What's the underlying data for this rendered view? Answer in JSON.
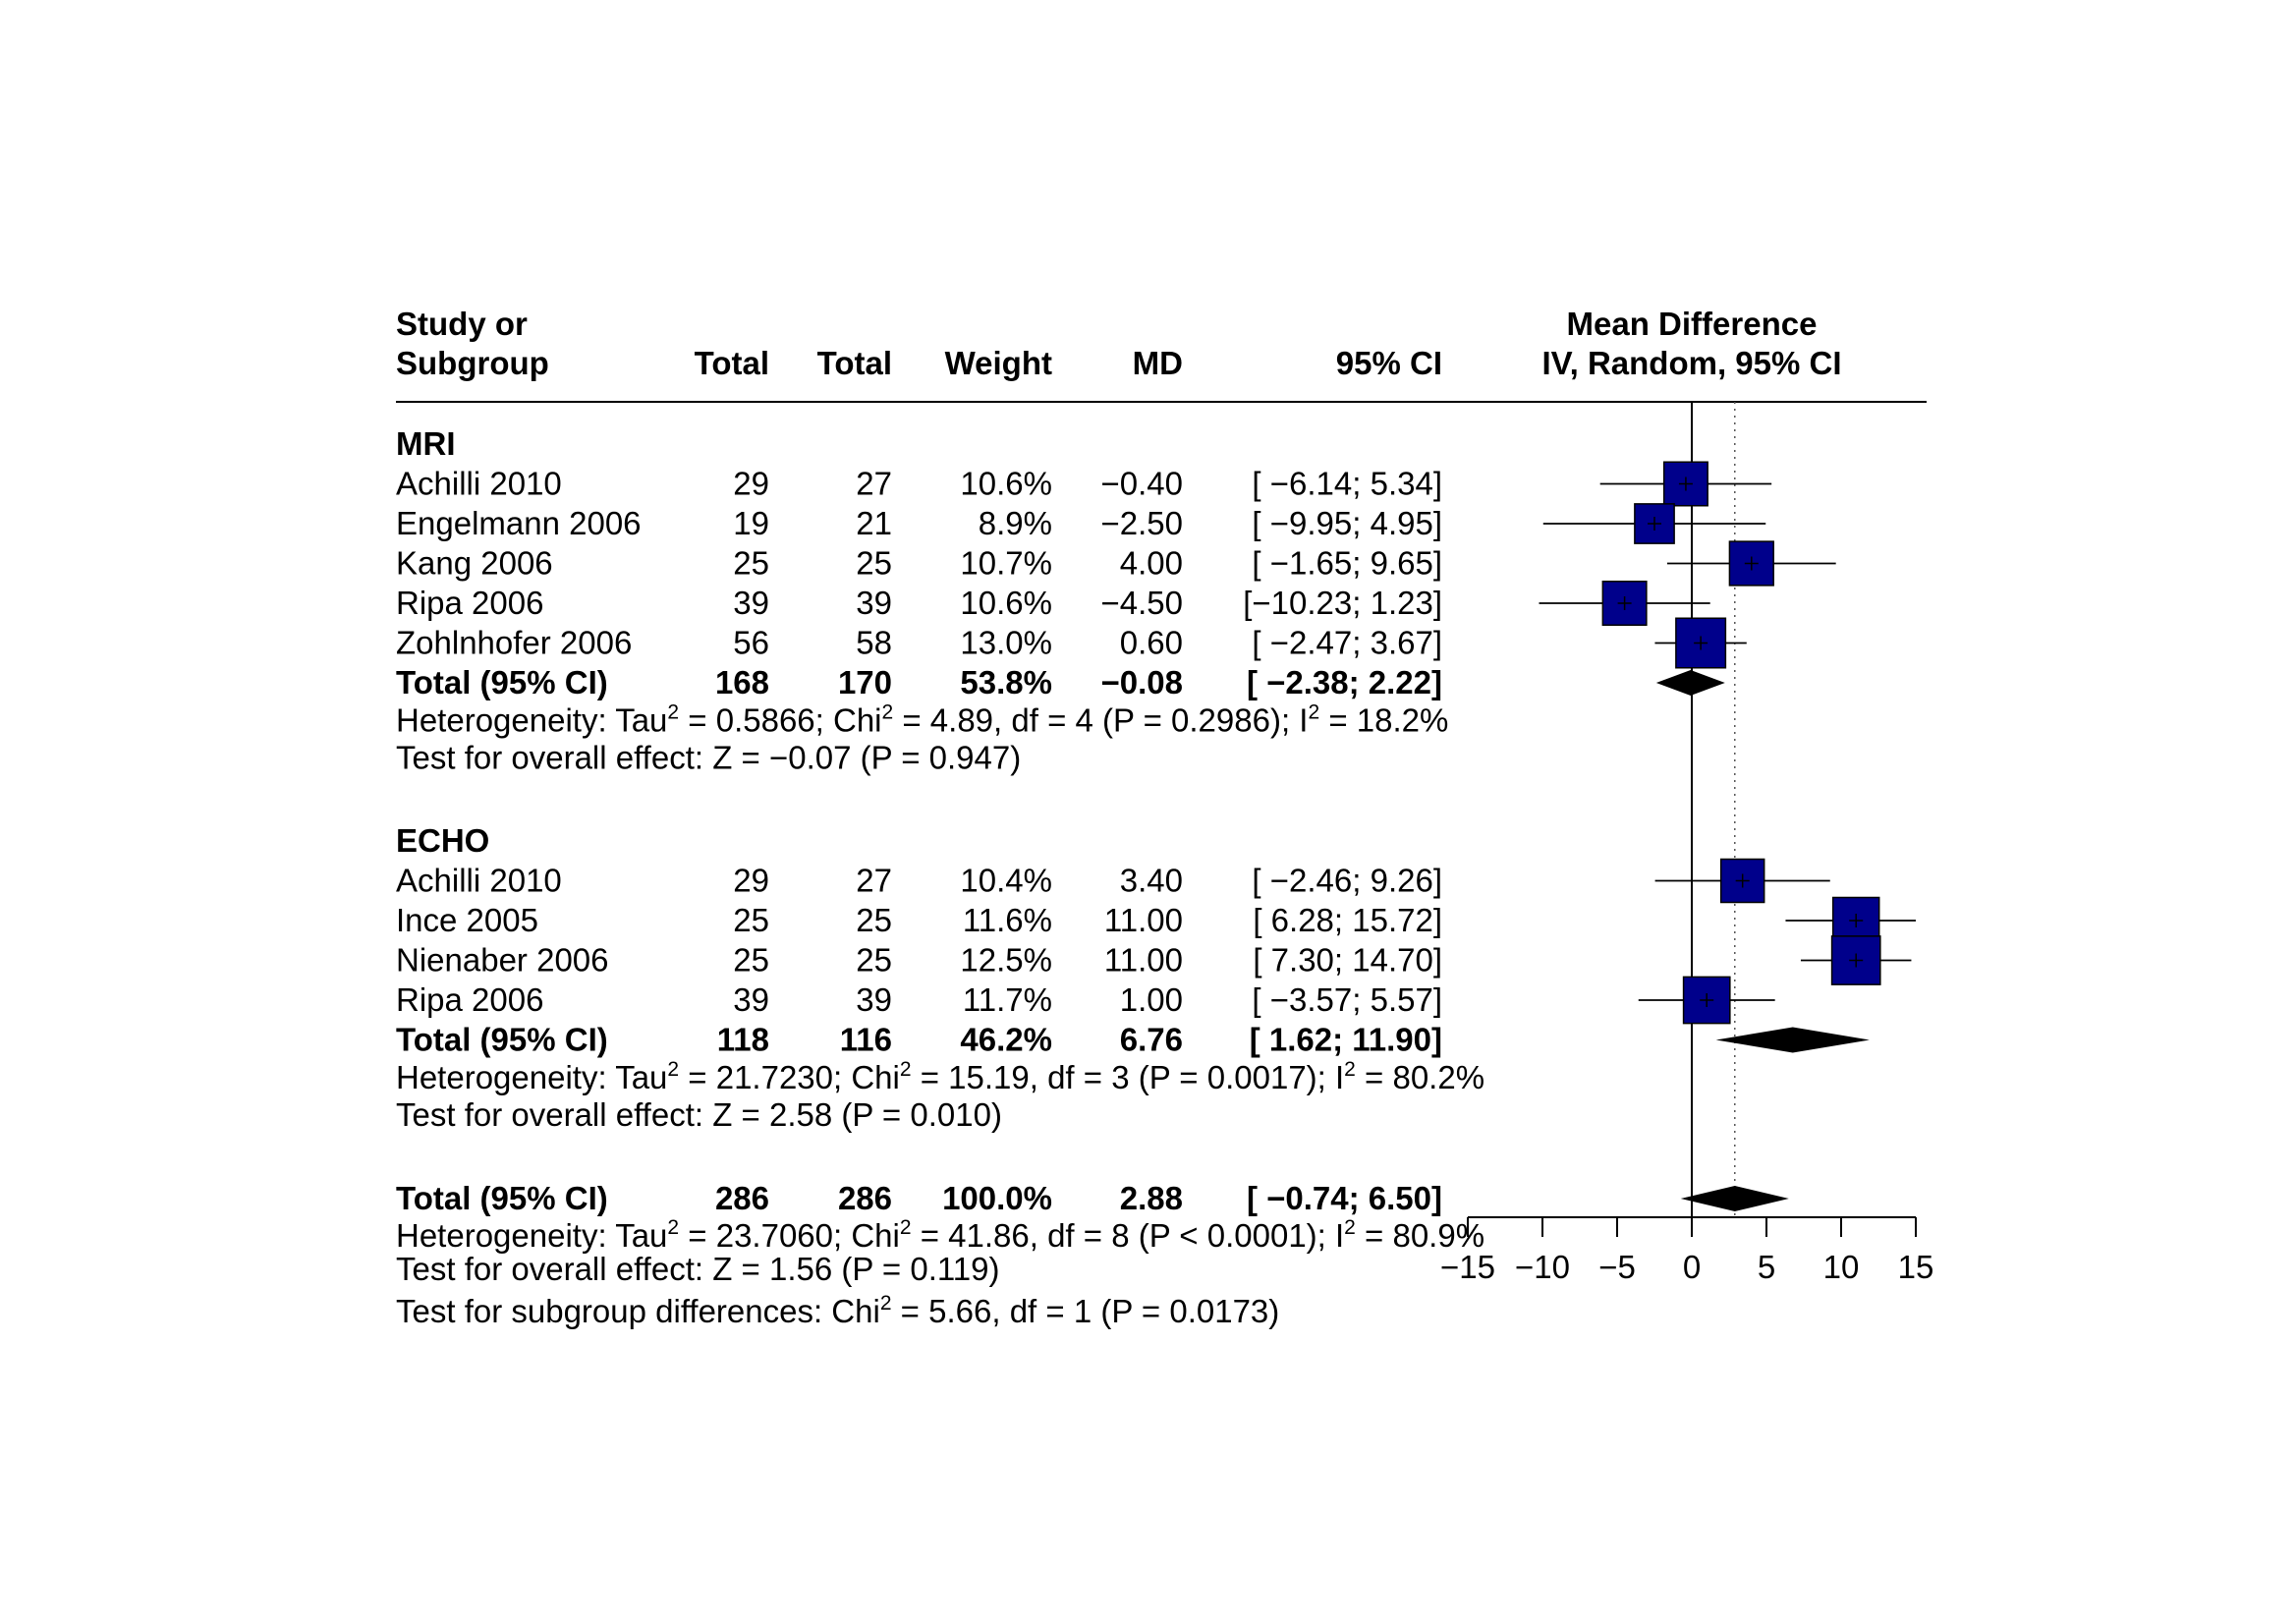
{
  "chart_data": {
    "type": "forest",
    "headers": {
      "study_line1": "Study or",
      "study_line2": "Subgroup",
      "total_exp": "Total",
      "total_ctrl": "Total",
      "weight": "Weight",
      "md": "MD",
      "ci": "95% CI",
      "plot_line1": "Mean Difference",
      "plot_line2": "IV, Random, 95% CI"
    },
    "subgroups": [
      {
        "name": "MRI",
        "studies": [
          {
            "study": "Achilli 2010",
            "n_exp": "29",
            "n_ctrl": "27",
            "weight_label": "10.6%",
            "md_label": "−0.40",
            "ci_label": "[ −6.14;  5.34]",
            "md": -0.4,
            "lower": -6.14,
            "upper": 5.34,
            "weight": 10.6
          },
          {
            "study": "Engelmann 2006",
            "n_exp": "19",
            "n_ctrl": "21",
            "weight_label": "8.9%",
            "md_label": "−2.50",
            "ci_label": "[ −9.95;  4.95]",
            "md": -2.5,
            "lower": -9.95,
            "upper": 4.95,
            "weight": 8.9
          },
          {
            "study": "Kang 2006",
            "n_exp": "25",
            "n_ctrl": "25",
            "weight_label": "10.7%",
            "md_label": "4.00",
            "ci_label": "[ −1.65;  9.65]",
            "md": 4.0,
            "lower": -1.65,
            "upper": 9.65,
            "weight": 10.7
          },
          {
            "study": "Ripa 2006",
            "n_exp": "39",
            "n_ctrl": "39",
            "weight_label": "10.6%",
            "md_label": "−4.50",
            "ci_label": "[−10.23;  1.23]",
            "md": -4.5,
            "lower": -10.23,
            "upper": 1.23,
            "weight": 10.6
          },
          {
            "study": "Zohlnhofer 2006",
            "n_exp": "56",
            "n_ctrl": "58",
            "weight_label": "13.0%",
            "md_label": "0.60",
            "ci_label": "[ −2.47;  3.67]",
            "md": 0.6,
            "lower": -2.47,
            "upper": 3.67,
            "weight": 13.0
          }
        ],
        "total": {
          "label": "Total (95% CI)",
          "n_exp": "168",
          "n_ctrl": "170",
          "weight_label": "53.8%",
          "md_label": "−0.08",
          "ci_label": "[ −2.38;  2.22]",
          "md": -0.08,
          "lower": -2.38,
          "upper": 2.22
        },
        "heterogeneity": {
          "p1": "Heterogeneity: Tau",
          "p2": " = 0.5866; Chi",
          "p3": " = 4.89, df = 4 (P = 0.2986); I",
          "p4": " = 18.2%"
        },
        "overall_effect": "Test for overall effect: Z = −0.07 (P = 0.947)"
      },
      {
        "name": "ECHO",
        "studies": [
          {
            "study": "Achilli 2010",
            "n_exp": "29",
            "n_ctrl": "27",
            "weight_label": "10.4%",
            "md_label": "3.40",
            "ci_label": "[ −2.46;  9.26]",
            "md": 3.4,
            "lower": -2.46,
            "upper": 9.26,
            "weight": 10.4
          },
          {
            "study": "Ince 2005",
            "n_exp": "25",
            "n_ctrl": "25",
            "weight_label": "11.6%",
            "md_label": "11.00",
            "ci_label": "[  6.28; 15.72]",
            "md": 11.0,
            "lower": 6.28,
            "upper": 15.72,
            "weight": 11.6
          },
          {
            "study": "Nienaber 2006",
            "n_exp": "25",
            "n_ctrl": "25",
            "weight_label": "12.5%",
            "md_label": "11.00",
            "ci_label": "[  7.30; 14.70]",
            "md": 11.0,
            "lower": 7.3,
            "upper": 14.7,
            "weight": 12.5
          },
          {
            "study": "Ripa 2006",
            "n_exp": "39",
            "n_ctrl": "39",
            "weight_label": "11.7%",
            "md_label": "1.00",
            "ci_label": "[ −3.57;  5.57]",
            "md": 1.0,
            "lower": -3.57,
            "upper": 5.57,
            "weight": 11.7
          }
        ],
        "total": {
          "label": "Total (95% CI)",
          "n_exp": "118",
          "n_ctrl": "116",
          "weight_label": "46.2%",
          "md_label": "6.76",
          "ci_label": "[  1.62; 11.90]",
          "md": 6.76,
          "lower": 1.62,
          "upper": 11.9
        },
        "heterogeneity": {
          "p1": "Heterogeneity: Tau",
          "p2": " = 21.7230; Chi",
          "p3": " = 15.19, df = 3 (P = 0.0017); I",
          "p4": " = 80.2%"
        },
        "overall_effect": "Test for overall effect: Z = 2.58 (P = 0.010)"
      }
    ],
    "overall": {
      "label": "Total (95% CI)",
      "n_exp": "286",
      "n_ctrl": "286",
      "weight_label": "100.0%",
      "md_label": "2.88",
      "ci_label": "[ −0.74;  6.50]",
      "md": 2.88,
      "lower": -0.74,
      "upper": 6.5,
      "heterogeneity": {
        "p1": "Heterogeneity: Tau",
        "p2": " = 23.7060; Chi",
        "p3": " = 41.86, df = 8 (P < 0.0001); I",
        "p4": " = 80.9%"
      },
      "overall_effect": "Test for overall effect: Z = 1.56 (P = 0.119)",
      "subgroup_diff": {
        "p1": "Test for subgroup differences: Chi",
        "p2": " = 5.66, df = 1 (P = 0.0173)"
      }
    },
    "superscript": "2",
    "xaxis": {
      "ticks": [
        -15,
        -10,
        -5,
        0,
        5,
        10,
        15
      ],
      "tick_labels": [
        "−15",
        "−10",
        "−5",
        "0",
        "5",
        "10",
        "15"
      ],
      "xlim": [
        -15,
        15
      ]
    },
    "reference_line": 0,
    "overall_effect_line": 2.88,
    "colors": {
      "square_fill": "#00008B",
      "diamond_fill": "#000000",
      "line": "#000000"
    }
  }
}
